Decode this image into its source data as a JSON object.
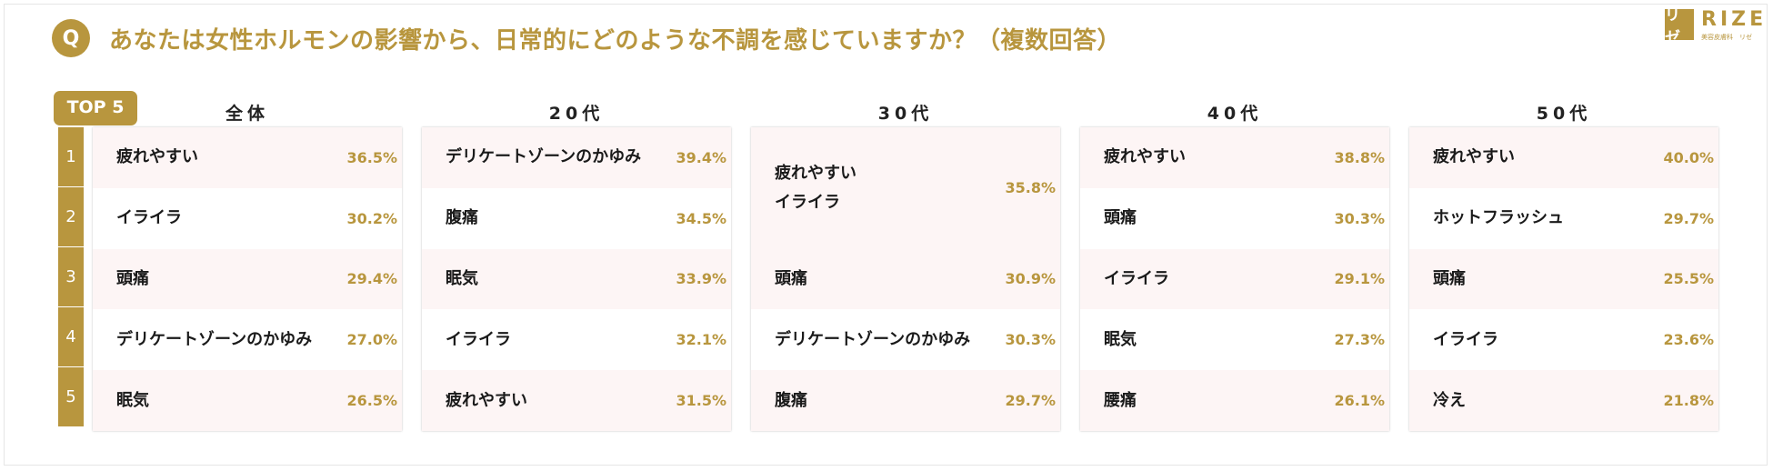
{
  "header": {
    "q_label": "Q",
    "question": "あなたは女性ホルモンの影響から、日常的にどのような不調を感じていますか？（複数回答）"
  },
  "logo": {
    "mark": "リゼ",
    "name": "RIZE",
    "sub": "美容皮膚科　リゼ"
  },
  "badge": "TOP 5",
  "ranks": [
    "1",
    "2",
    "3",
    "4",
    "5"
  ],
  "colors": {
    "accent": "#b8963e",
    "row_tint": "#fdf5f5"
  },
  "chart_data": {
    "type": "table",
    "groups": [
      {
        "name": "全体",
        "rows": [
          {
            "rank": "1",
            "label": "疲れやすい",
            "value": "36.5%"
          },
          {
            "rank": "2",
            "label": "イライラ",
            "value": "30.2%"
          },
          {
            "rank": "3",
            "label": "頭痛",
            "value": "29.4%"
          },
          {
            "rank": "4",
            "label": "デリケートゾーンのかゆみ",
            "value": "27.0%"
          },
          {
            "rank": "5",
            "label": "眠気",
            "value": "26.5%"
          }
        ]
      },
      {
        "name": "20代",
        "rows": [
          {
            "rank": "1",
            "label": "デリケートゾーンのかゆみ",
            "value": "39.4%"
          },
          {
            "rank": "2",
            "label": "腹痛",
            "value": "34.5%"
          },
          {
            "rank": "3",
            "label": "眠気",
            "value": "33.9%"
          },
          {
            "rank": "4",
            "label": "イライラ",
            "value": "32.1%"
          },
          {
            "rank": "5",
            "label": "疲れやすい",
            "value": "31.5%"
          }
        ]
      },
      {
        "name": "30代",
        "rows": [
          {
            "rank": "1",
            "label": "疲れやすい\nイライラ",
            "value": "35.8%",
            "span": 2
          },
          {
            "rank": "3",
            "label": "頭痛",
            "value": "30.9%"
          },
          {
            "rank": "4",
            "label": "デリケートゾーンのかゆみ",
            "value": "30.3%"
          },
          {
            "rank": "5",
            "label": "腹痛",
            "value": "29.7%"
          }
        ]
      },
      {
        "name": "40代",
        "rows": [
          {
            "rank": "1",
            "label": "疲れやすい",
            "value": "38.8%"
          },
          {
            "rank": "2",
            "label": "頭痛",
            "value": "30.3%"
          },
          {
            "rank": "3",
            "label": "イライラ",
            "value": "29.1%"
          },
          {
            "rank": "4",
            "label": "眠気",
            "value": "27.3%"
          },
          {
            "rank": "5",
            "label": "腰痛",
            "value": "26.1%"
          }
        ]
      },
      {
        "name": "50代",
        "rows": [
          {
            "rank": "1",
            "label": "疲れやすい",
            "value": "40.0%"
          },
          {
            "rank": "2",
            "label": "ホットフラッシュ",
            "value": "29.7%"
          },
          {
            "rank": "3",
            "label": "頭痛",
            "value": "25.5%"
          },
          {
            "rank": "4",
            "label": "イライラ",
            "value": "23.6%"
          },
          {
            "rank": "5",
            "label": "冷え",
            "value": "21.8%"
          }
        ]
      }
    ]
  }
}
